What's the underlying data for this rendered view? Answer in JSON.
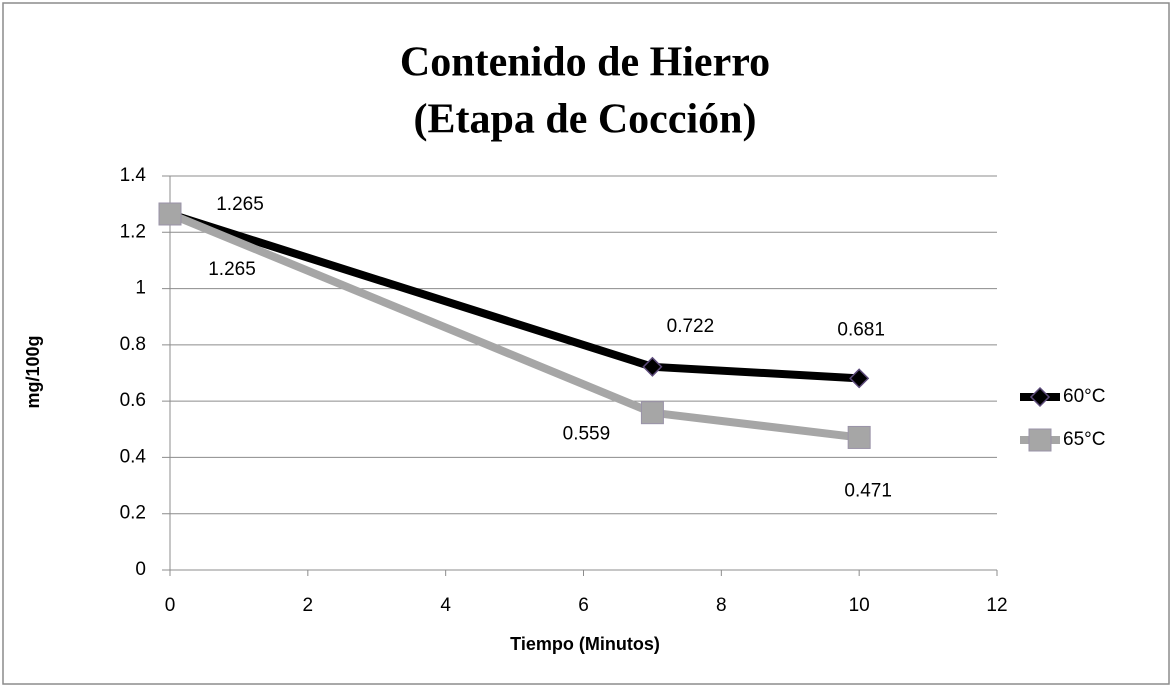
{
  "chart_data": {
    "type": "line",
    "title": [
      "Contenido de Hierro",
      "(Etapa de Cocción)"
    ],
    "x_label": "Tiempo (Minutos)",
    "y_label": "mg/100g",
    "x": [
      0,
      7,
      10
    ],
    "series": [
      {
        "name": "60°C",
        "color": "#000000",
        "marker": "diamond",
        "values": [
          1.265,
          0.722,
          0.681
        ]
      },
      {
        "name": "65°C",
        "color": "#a6a6a6",
        "marker": "square",
        "values": [
          1.265,
          0.559,
          0.471
        ]
      }
    ],
    "xlim": [
      0,
      12
    ],
    "xticks": [
      0,
      2,
      4,
      6,
      8,
      10,
      12
    ],
    "ylim": [
      0,
      1.4
    ],
    "yticks": [
      0,
      0.2,
      0.4,
      0.6,
      0.8,
      1,
      1.2,
      1.4
    ],
    "grid": true,
    "legend": "right"
  }
}
